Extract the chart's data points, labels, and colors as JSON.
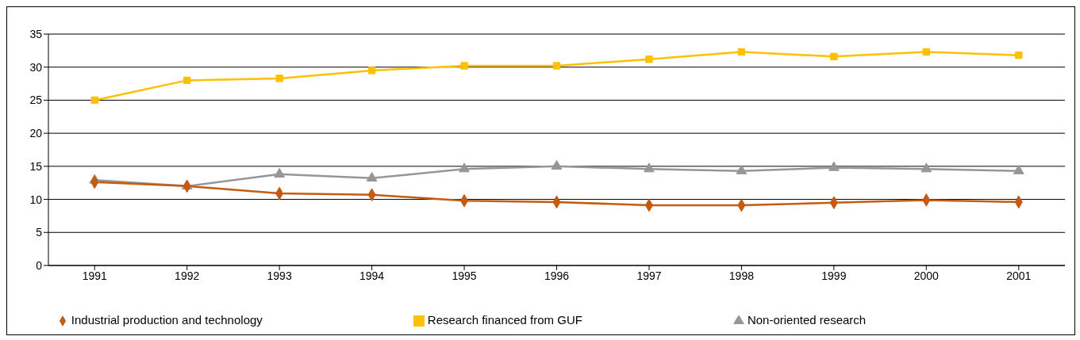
{
  "chart_data": {
    "type": "line",
    "categories": [
      "1991",
      "1992",
      "1993",
      "1994",
      "1995",
      "1996",
      "1997",
      "1998",
      "1999",
      "2000",
      "2001"
    ],
    "series": [
      {
        "name": "Industrial production and technology",
        "color": "#c55a11",
        "marker": "diamond",
        "values": [
          12.6,
          12.0,
          10.9,
          10.7,
          9.8,
          9.6,
          9.1,
          9.1,
          9.5,
          9.9,
          9.6
        ]
      },
      {
        "name": "Research financed from GUF",
        "color": "#ffc000",
        "marker": "square",
        "values": [
          25.0,
          28.0,
          28.3,
          29.5,
          30.2,
          30.2,
          31.2,
          32.3,
          31.6,
          32.3,
          31.8
        ]
      },
      {
        "name": "Non-oriented research",
        "color": "#969696",
        "marker": "triangle",
        "values": [
          12.9,
          12.0,
          13.8,
          13.2,
          14.6,
          15.0,
          14.6,
          14.3,
          14.8,
          14.6,
          14.3
        ]
      }
    ],
    "ylim": [
      0,
      35
    ],
    "yticks": [
      0,
      5,
      10,
      15,
      20,
      25,
      30,
      35
    ],
    "grid": "y",
    "legend": "bottom",
    "line_style": "solid"
  }
}
